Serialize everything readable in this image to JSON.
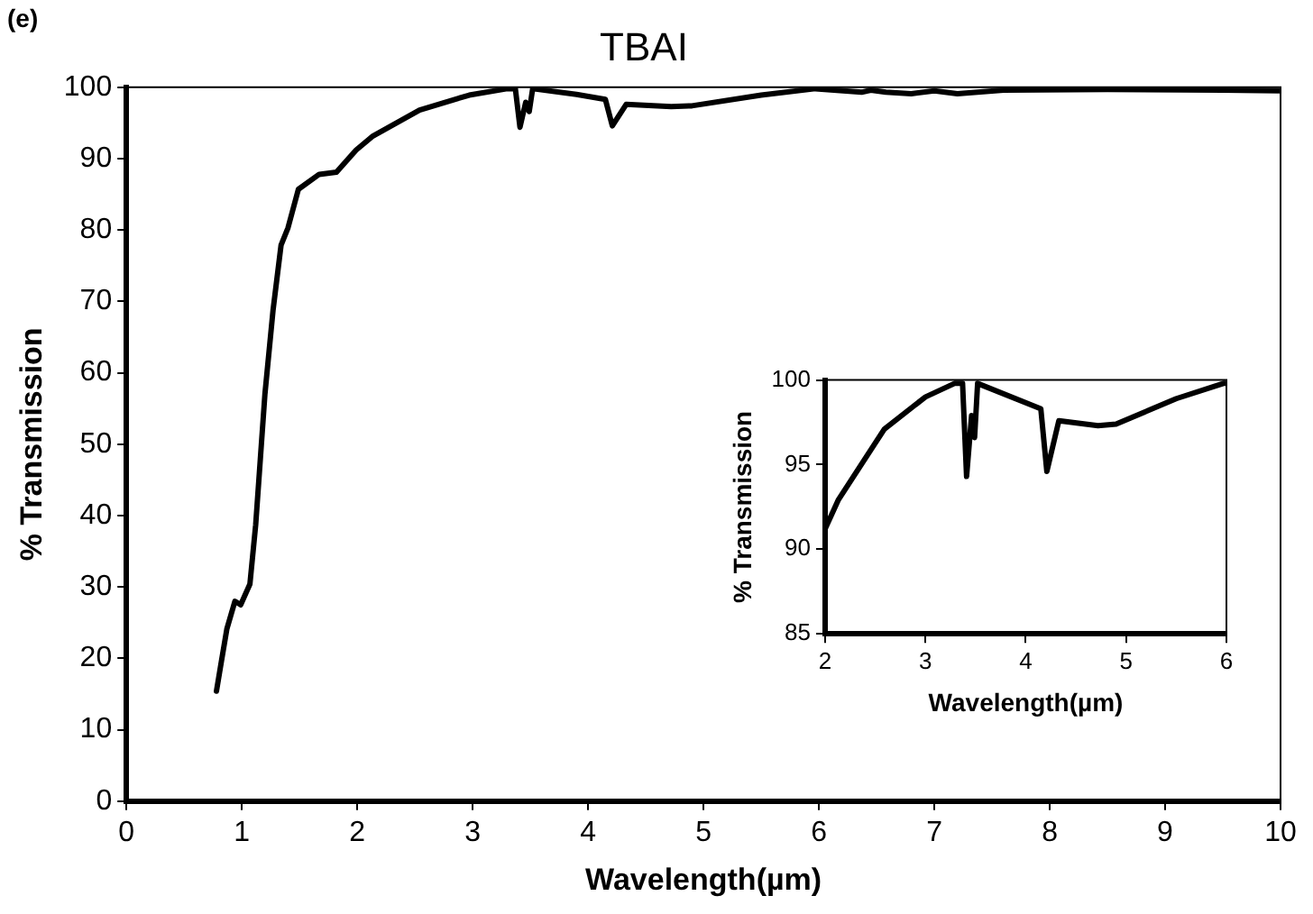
{
  "chart_data": [
    {
      "type": "line",
      "title": "TBAI",
      "xlabel": "Wavelength(µm)",
      "ylabel": "% Transmission",
      "annotations": [
        "(e)"
      ],
      "xlim": [
        0,
        10
      ],
      "xticks": [
        0,
        1,
        2,
        3,
        4,
        5,
        6,
        7,
        8,
        9,
        10
      ],
      "ylim": [
        0,
        100
      ],
      "yticks": [
        0,
        10,
        20,
        30,
        40,
        50,
        60,
        70,
        80,
        90,
        100
      ],
      "grid": false,
      "legend": false,
      "marker": "none",
      "line_style": "solid",
      "series": [
        {
          "color": "#000000",
          "x": [
            0.78,
            0.82,
            0.87,
            0.94,
            0.99,
            1.07,
            1.12,
            1.2,
            1.27,
            1.34,
            1.4,
            1.49,
            1.67,
            1.82,
            1.99,
            2.13,
            2.54,
            2.97,
            3.3,
            3.37,
            3.41,
            3.46,
            3.49,
            3.52,
            3.9,
            4.15,
            4.21,
            4.33,
            4.72,
            4.9,
            5.5,
            5.97,
            6.37,
            6.45,
            6.58,
            6.8,
            7.0,
            7.2,
            7.6,
            8.5,
            9.5,
            10
          ],
          "values": [
            15.4,
            19.3,
            24.1,
            28,
            27.5,
            30.4,
            38.7,
            57,
            68.7,
            77.9,
            80.3,
            85.7,
            87.8,
            88.1,
            91.2,
            93.1,
            96.8,
            98.9,
            99.8,
            99.8,
            94.4,
            97.9,
            96.6,
            99.8,
            99,
            98.3,
            94.6,
            97.6,
            97.3,
            97.4,
            98.9,
            99.8,
            99.3,
            99.6,
            99.3,
            99.1,
            99.5,
            99.1,
            99.6,
            99.7,
            99.6,
            99.5
          ]
        }
      ]
    },
    {
      "type": "line",
      "xlabel": "Wavelength(µm)",
      "ylabel": "% Transmission",
      "xlim": [
        2,
        6
      ],
      "xticks": [
        2,
        3,
        4,
        5,
        6
      ],
      "ylim": [
        85,
        100
      ],
      "yticks": [
        85,
        90,
        95,
        100
      ],
      "grid": false,
      "legend": false,
      "marker": "none",
      "line_style": "solid",
      "series": [
        {
          "color": "#000000",
          "x": [
            2.0,
            2.13,
            2.59,
            3.0,
            3.29,
            3.37,
            3.41,
            3.46,
            3.49,
            3.52,
            4.15,
            4.21,
            4.33,
            4.72,
            4.9,
            5.5,
            5.97,
            6.0
          ],
          "values": [
            91.2,
            92.9,
            97.1,
            99.0,
            99.8,
            99.8,
            94.3,
            97.9,
            96.6,
            99.8,
            98.3,
            94.6,
            97.6,
            97.3,
            97.4,
            98.9,
            99.8,
            99.8
          ]
        }
      ]
    }
  ]
}
